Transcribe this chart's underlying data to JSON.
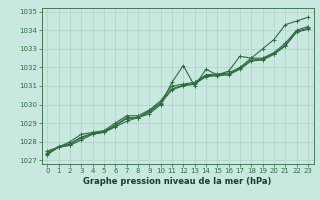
{
  "title": "Graphe pression niveau de la mer (hPa)",
  "bg_color": "#c8e8e0",
  "grid_color": "#b0d0c8",
  "line_color": "#2d6e3e",
  "xlim": [
    -0.5,
    23.5
  ],
  "ylim": [
    1026.8,
    1035.2
  ],
  "yticks": [
    1027,
    1028,
    1029,
    1030,
    1031,
    1032,
    1033,
    1034,
    1035
  ],
  "xticks": [
    0,
    1,
    2,
    3,
    4,
    5,
    6,
    7,
    8,
    9,
    10,
    11,
    12,
    13,
    14,
    15,
    16,
    17,
    18,
    19,
    20,
    21,
    22,
    23
  ],
  "line1": [
    1027.3,
    1027.7,
    1027.8,
    1028.1,
    1028.4,
    1028.5,
    1028.8,
    1029.1,
    1029.3,
    1029.5,
    1030.0,
    1031.2,
    1032.1,
    1031.0,
    1031.9,
    1031.6,
    1031.8,
    1032.6,
    1032.5,
    1033.0,
    1033.5,
    1034.3,
    1034.5,
    1034.7
  ],
  "line2": [
    1027.5,
    1027.7,
    1028.0,
    1028.4,
    1028.5,
    1028.6,
    1029.0,
    1029.4,
    1029.4,
    1029.7,
    1030.2,
    1031.0,
    1031.1,
    1031.2,
    1031.6,
    1031.65,
    1031.7,
    1032.0,
    1032.5,
    1032.5,
    1032.8,
    1033.3,
    1034.0,
    1034.2
  ],
  "line3": [
    1027.4,
    1027.75,
    1027.9,
    1028.25,
    1028.45,
    1028.55,
    1028.9,
    1029.3,
    1029.3,
    1029.65,
    1030.1,
    1030.85,
    1031.05,
    1031.15,
    1031.55,
    1031.6,
    1031.65,
    1031.95,
    1032.4,
    1032.45,
    1032.75,
    1033.2,
    1033.95,
    1034.1
  ],
  "line4": [
    1027.35,
    1027.72,
    1027.85,
    1028.2,
    1028.42,
    1028.52,
    1028.85,
    1029.25,
    1029.28,
    1029.6,
    1030.05,
    1030.8,
    1031.0,
    1031.1,
    1031.5,
    1031.55,
    1031.6,
    1031.9,
    1032.35,
    1032.4,
    1032.7,
    1033.15,
    1033.9,
    1034.05
  ],
  "figsize": [
    3.2,
    2.0
  ],
  "dpi": 100,
  "tick_fontsize": 5,
  "label_fontsize": 6,
  "linewidth": 0.8,
  "markersize": 2.5
}
